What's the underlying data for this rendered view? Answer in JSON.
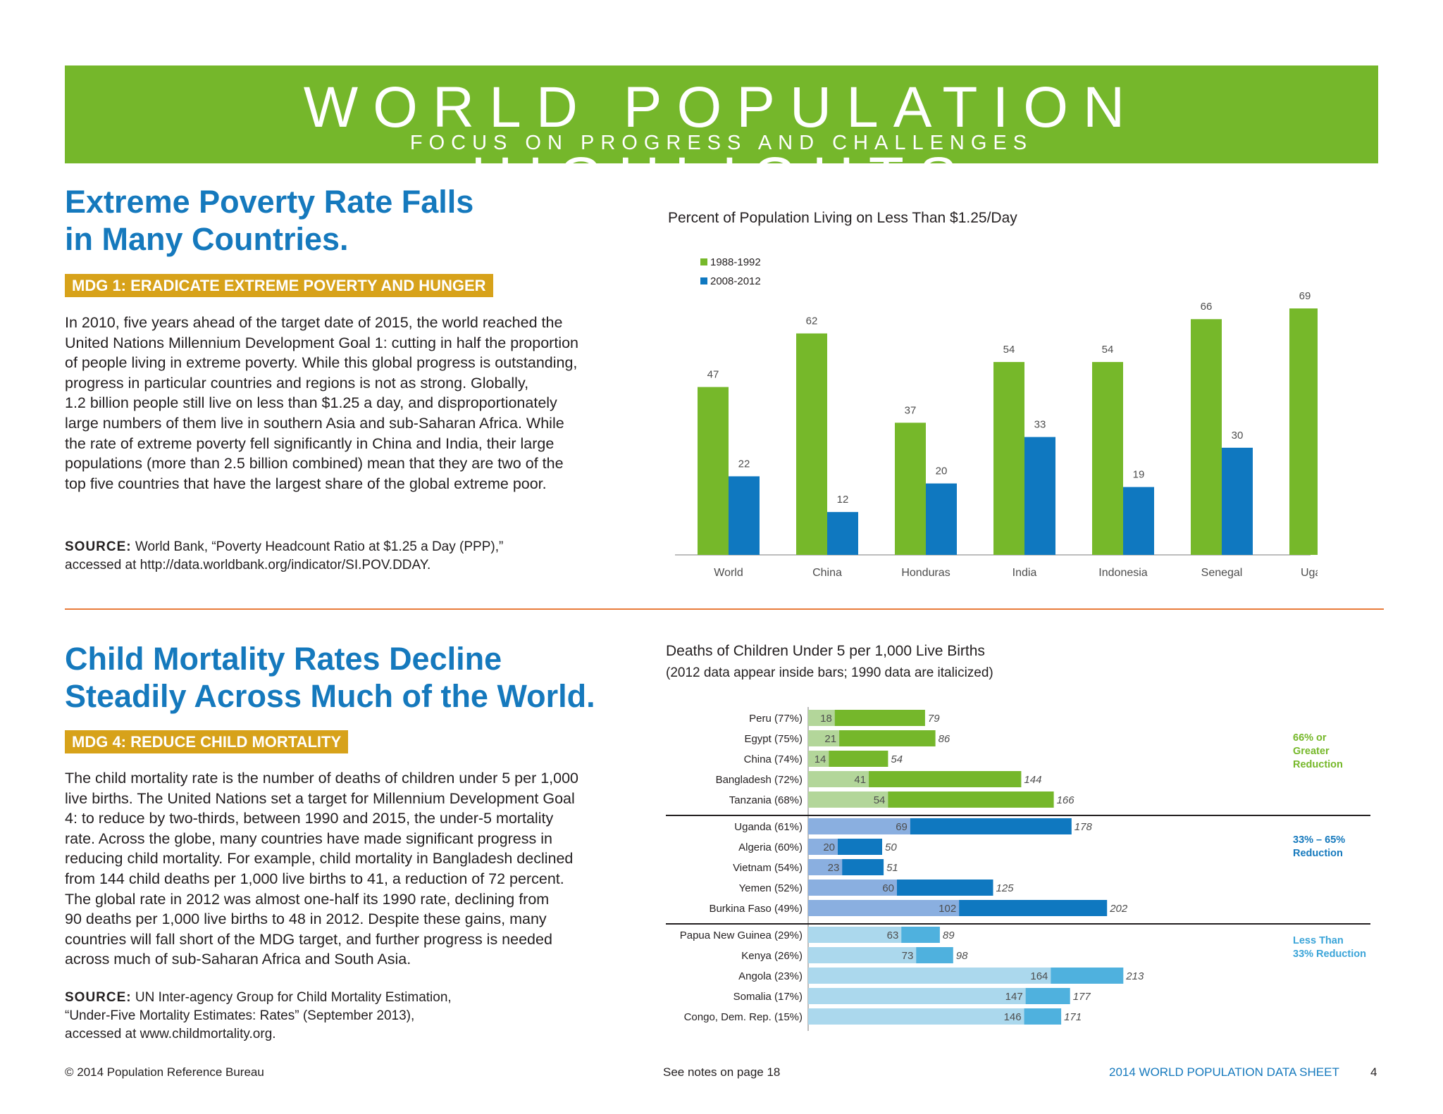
{
  "header": {
    "title": "WORLD POPULATION HIGHLIGHTS",
    "subtitle": "FOCUS ON PROGRESS AND CHALLENGES"
  },
  "section1": {
    "headline_line1": "Extreme Poverty Rate Falls",
    "headline_line2": "in Many Countries.",
    "mdg_label": "MDG 1: ERADICATE EXTREME POVERTY AND HUNGER",
    "body_lines": [
      "In 2010, five years ahead of the target date of 2015, the world reached the",
      "United Nations Millennium Development Goal 1: cutting in half the proportion",
      "of people living in extreme poverty. While this global progress is outstanding,",
      "progress in particular countries and regions is not as strong. Globally,",
      "1.2 billion people still live on less than $1.25 a day, and disproportionately",
      "large numbers of them live in southern Asia and sub-Saharan Africa. While",
      "the rate of extreme poverty fell significantly in China and India, their large",
      "populations (more than 2.5 billion combined) mean that they are two of the",
      "top five countries that have the largest share of the global extreme poor."
    ],
    "source_label": "SOURCE:",
    "source_line1": "World Bank, “Poverty Headcount Ratio at $1.25 a Day (PPP),”",
    "source_line2": "accessed at http://data.worldbank.org/indicator/SI.POV.DDAY."
  },
  "section2": {
    "headline_line1": "Child Mortality Rates Decline",
    "headline_line2": "Steadily Across Much of the World.",
    "mdg_label": "MDG 4:  REDUCE CHILD MORTALITY",
    "body_lines": [
      "The child mortality rate is the number of deaths of children under 5 per 1,000",
      "live births. The United Nations set a target for Millennium Development Goal",
      "4: to reduce by two-thirds, between 1990 and 2015, the under-5 mortality",
      "rate. Across the globe, many countries have made significant progress in",
      "reducing child mortality. For example, child mortality in Bangladesh declined",
      "from 144 child deaths per 1,000 live births to 41, a reduction of 72 percent.",
      "The global rate in 2012 was almost one-half its 1990 rate, declining from",
      "90 deaths per 1,000 live births to 48 in 2012. Despite these gains, many",
      "countries will fall short of the MDG target, and further progress is needed",
      "across much of sub-Saharan Africa and South Asia."
    ],
    "source_label": "SOURCE:",
    "source_line1": "UN Inter-agency Group for Child Mortality Estimation,",
    "source_line2": "“Under-Five Mortality Estimates: Rates” (September 2013),",
    "source_line3": "accessed at www.childmortality.org."
  },
  "chart_data": [
    {
      "type": "bar",
      "title": "Percent of Population Living on Less Than $1.25/Day",
      "categories": [
        "World",
        "China",
        "Honduras",
        "India",
        "Indonesia",
        "Senegal",
        "Uganda"
      ],
      "series": [
        {
          "name": "1988-1992",
          "values": [
            47,
            62,
            37,
            54,
            54,
            66,
            69
          ],
          "color": "#76b82a"
        },
        {
          "name": "2008-2012",
          "values": [
            22,
            12,
            20,
            33,
            19,
            30,
            38
          ],
          "color": "#0f78c0"
        }
      ],
      "ylim": [
        0,
        69
      ],
      "legend": "top-left",
      "grid": false
    },
    {
      "type": "bar",
      "orientation": "horizontal",
      "title": "Deaths of Children Under 5 per 1,000 Live Births",
      "subtitle": "(2012 data appear inside bars; 1990 data are italicized)",
      "categories": [
        "Peru (77%)",
        "Egypt (75%)",
        "China (74%)",
        "Bangladesh (72%)",
        "Tanzania (68%)",
        "Uganda (61%)",
        "Algeria (60%)",
        "Vietnam (54%)",
        "Yemen (52%)",
        "Burkina Faso (49%)",
        "Papua New Guinea (29%)",
        "Kenya (26%)",
        "Angola (23%)",
        "Somalia (17%)",
        "Congo, Dem. Rep. (15%)"
      ],
      "series": [
        {
          "name": "2012",
          "values": [
            18,
            21,
            14,
            41,
            54,
            69,
            20,
            23,
            60,
            102,
            63,
            73,
            164,
            147,
            146
          ]
        },
        {
          "name": "1990",
          "values": [
            79,
            86,
            54,
            144,
            166,
            178,
            50,
            51,
            125,
            202,
            89,
            98,
            213,
            177,
            171
          ]
        }
      ],
      "groups": [
        {
          "label_line1": "66% or",
          "label_line2": "Greater",
          "label_line3": "Reduction",
          "start": 0,
          "count": 5,
          "color_2012": "#b3d69a",
          "color_1990": "#75b72b",
          "label_color": "#76b82a"
        },
        {
          "label_line1": "33% – 65%",
          "label_line2": "Reduction",
          "label_line3": "",
          "start": 5,
          "count": 5,
          "color_2012": "#8aafe0",
          "color_1990": "#0f78c0",
          "label_color": "#1579bd"
        },
        {
          "label_line1": "Less Than",
          "label_line2": "33% Reduction",
          "label_line3": "",
          "start": 10,
          "count": 5,
          "color_2012": "#abd8ed",
          "color_1990": "#4fb1de",
          "label_color": "#3aa4d8"
        }
      ],
      "xlim": [
        0,
        213
      ]
    }
  ],
  "footer": {
    "copyright": "© 2014 Population Reference Bureau",
    "notes": "See notes on page 18",
    "publication": "2014 WORLD POPULATION DATA SHEET",
    "page_number": "4"
  }
}
